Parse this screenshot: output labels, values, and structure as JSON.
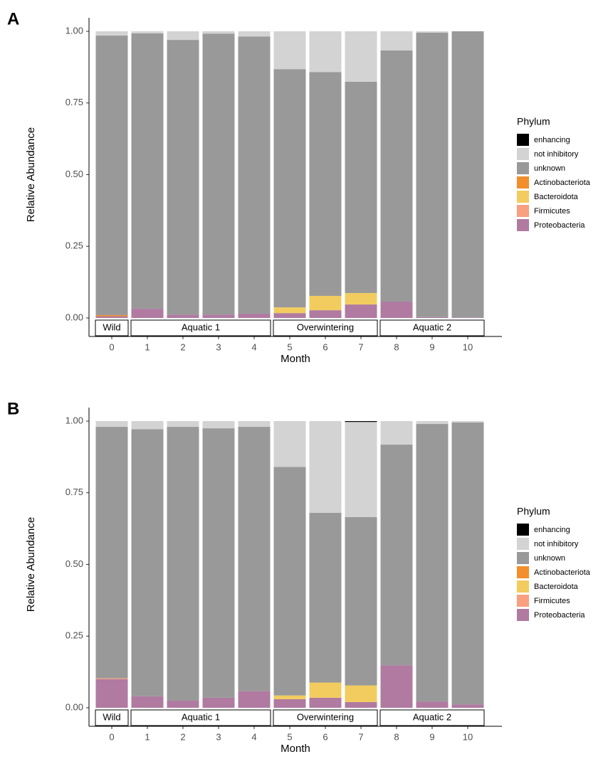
{
  "chart_data": [
    {
      "type": "stacked_bar",
      "title": "A",
      "x_label": "Month",
      "y_label": "Relative Abundance",
      "legend_title": "Phylum",
      "categories": [
        "0",
        "1",
        "2",
        "3",
        "4",
        "5",
        "6",
        "7",
        "8",
        "9",
        "10"
      ],
      "ylim": [
        0,
        1
      ],
      "yticks": [
        {
          "value": 0,
          "label": "0.00"
        },
        {
          "value": 0.25,
          "label": "0.25"
        },
        {
          "value": 0.5,
          "label": "0.50"
        },
        {
          "value": 0.75,
          "label": "0.75"
        },
        {
          "value": 1,
          "label": "1.00"
        }
      ],
      "groups": [
        {
          "label": "Wild",
          "from": 0,
          "to": 0
        },
        {
          "label": "Aquatic 1",
          "from": 1,
          "to": 4
        },
        {
          "label": "Overwintering",
          "from": 5,
          "to": 7
        },
        {
          "label": "Aquatic 2",
          "from": 8,
          "to": 10
        }
      ],
      "series": [
        {
          "name": "enhancing",
          "color": "#000000",
          "values": [
            0,
            0,
            0,
            0,
            0,
            0,
            0,
            0,
            0,
            0,
            0
          ]
        },
        {
          "name": "not inhibitory",
          "color": "#d3d3d3",
          "values": [
            0.015,
            0.007,
            0.03,
            0.008,
            0.018,
            0.132,
            0.142,
            0.176,
            0.067,
            0.005,
            0
          ]
        },
        {
          "name": "unknown",
          "color": "#999999",
          "values": [
            0.975,
            0.961,
            0.958,
            0.98,
            0.967,
            0.831,
            0.781,
            0.737,
            0.876,
            0.992,
            0.998
          ]
        },
        {
          "name": "Actinobacteriota",
          "color": "#f28e2b",
          "values": [
            0.004,
            0,
            0,
            0,
            0,
            0,
            0,
            0,
            0,
            0,
            0
          ]
        },
        {
          "name": "Bacteroidota",
          "color": "#f2cc5f",
          "values": [
            0,
            0,
            0,
            0,
            0,
            0.02,
            0.05,
            0.04,
            0,
            0,
            0
          ]
        },
        {
          "name": "Firmicutes",
          "color": "#f8a07f",
          "values": [
            0,
            0,
            0,
            0,
            0,
            0,
            0,
            0,
            0,
            0,
            0
          ]
        },
        {
          "name": "Proteobacteria",
          "color": "#b07aa1",
          "values": [
            0.006,
            0.032,
            0.012,
            0.012,
            0.015,
            0.017,
            0.027,
            0.047,
            0.057,
            0.003,
            0.002
          ]
        }
      ]
    },
    {
      "type": "stacked_bar",
      "title": "B",
      "x_label": "Month",
      "y_label": "Relative Abundance",
      "legend_title": "Phylum",
      "categories": [
        "0",
        "1",
        "2",
        "3",
        "4",
        "5",
        "6",
        "7",
        "8",
        "9",
        "10"
      ],
      "ylim": [
        0,
        1
      ],
      "yticks": [
        {
          "value": 0,
          "label": "0.00"
        },
        {
          "value": 0.25,
          "label": "0.25"
        },
        {
          "value": 0.5,
          "label": "0.50"
        },
        {
          "value": 0.75,
          "label": "0.75"
        },
        {
          "value": 1,
          "label": "1.00"
        }
      ],
      "groups": [
        {
          "label": "Wild",
          "from": 0,
          "to": 0
        },
        {
          "label": "Aquatic 1",
          "from": 1,
          "to": 4
        },
        {
          "label": "Overwintering",
          "from": 5,
          "to": 7
        },
        {
          "label": "Aquatic 2",
          "from": 8,
          "to": 10
        }
      ],
      "series": [
        {
          "name": "enhancing",
          "color": "#000000",
          "values": [
            0,
            0,
            0,
            0,
            0,
            0,
            0,
            0.003,
            0,
            0,
            0
          ]
        },
        {
          "name": "not inhibitory",
          "color": "#d3d3d3",
          "values": [
            0.02,
            0.028,
            0.02,
            0.025,
            0.02,
            0.16,
            0.32,
            0.332,
            0.082,
            0.01,
            0.005
          ]
        },
        {
          "name": "unknown",
          "color": "#999999",
          "values": [
            0.877,
            0.932,
            0.955,
            0.94,
            0.922,
            0.797,
            0.592,
            0.587,
            0.77,
            0.968,
            0.983
          ]
        },
        {
          "name": "Actinobacteriota",
          "color": "#f28e2b",
          "values": [
            0,
            0,
            0,
            0,
            0,
            0,
            0,
            0,
            0,
            0,
            0
          ]
        },
        {
          "name": "Bacteroidota",
          "color": "#f2cc5f",
          "values": [
            0,
            0,
            0,
            0,
            0,
            0.013,
            0.053,
            0.058,
            0,
            0,
            0
          ]
        },
        {
          "name": "Firmicutes",
          "color": "#f8a07f",
          "values": [
            0.003,
            0,
            0,
            0,
            0,
            0,
            0,
            0,
            0,
            0,
            0
          ]
        },
        {
          "name": "Proteobacteria",
          "color": "#b07aa1",
          "values": [
            0.1,
            0.04,
            0.025,
            0.035,
            0.058,
            0.03,
            0.035,
            0.02,
            0.148,
            0.022,
            0.012
          ]
        }
      ]
    }
  ]
}
